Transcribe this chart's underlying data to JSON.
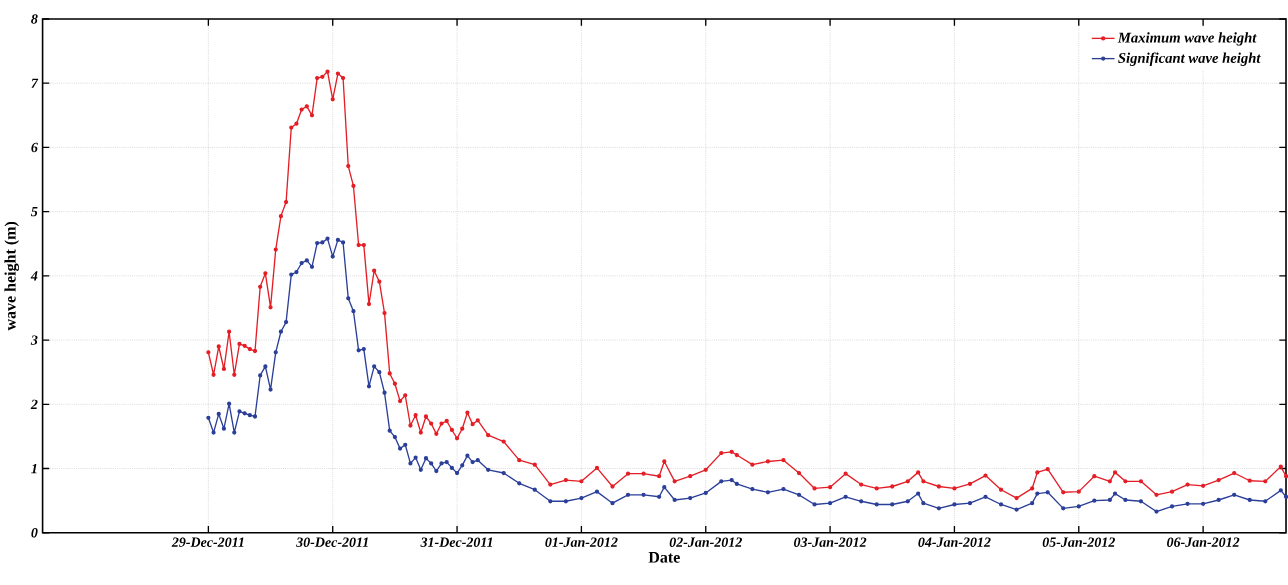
{
  "chart_data": {
    "type": "line",
    "xlabel": "Date",
    "ylabel": "wave height (m)",
    "x": [
      "2011-12-29T00:00",
      "2011-12-29T01:00",
      "2011-12-29T02:00",
      "2011-12-29T03:00",
      "2011-12-29T04:00",
      "2011-12-29T05:00",
      "2011-12-29T06:00",
      "2011-12-29T07:00",
      "2011-12-29T08:00",
      "2011-12-29T09:00",
      "2011-12-29T10:00",
      "2011-12-29T11:00",
      "2011-12-29T12:00",
      "2011-12-29T13:00",
      "2011-12-29T14:00",
      "2011-12-29T15:00",
      "2011-12-29T16:00",
      "2011-12-29T17:00",
      "2011-12-29T18:00",
      "2011-12-29T19:00",
      "2011-12-29T20:00",
      "2011-12-29T21:00",
      "2011-12-29T22:00",
      "2011-12-29T23:00",
      "2011-12-30T00:00",
      "2011-12-30T01:00",
      "2011-12-30T02:00",
      "2011-12-30T03:00",
      "2011-12-30T04:00",
      "2011-12-30T05:00",
      "2011-12-30T06:00",
      "2011-12-30T07:00",
      "2011-12-30T08:00",
      "2011-12-30T09:00",
      "2011-12-30T10:00",
      "2011-12-30T11:00",
      "2011-12-30T12:00",
      "2011-12-30T13:00",
      "2011-12-30T14:00",
      "2011-12-30T15:00",
      "2011-12-30T16:00",
      "2011-12-30T17:00",
      "2011-12-30T18:00",
      "2011-12-30T19:00",
      "2011-12-30T20:00",
      "2011-12-30T21:00",
      "2011-12-30T22:00",
      "2011-12-30T23:00",
      "2011-12-31T00:00",
      "2011-12-31T01:00",
      "2011-12-31T02:00",
      "2011-12-31T03:00",
      "2011-12-31T04:00",
      "2011-12-31T06:00",
      "2011-12-31T09:00",
      "2011-12-31T12:00",
      "2011-12-31T15:00",
      "2011-12-31T18:00",
      "2011-12-31T21:00",
      "2012-01-01T00:00",
      "2012-01-01T03:00",
      "2012-01-01T06:00",
      "2012-01-01T09:00",
      "2012-01-01T12:00",
      "2012-01-01T15:00",
      "2012-01-01T16:00",
      "2012-01-01T18:00",
      "2012-01-01T21:00",
      "2012-01-02T00:00",
      "2012-01-02T03:00",
      "2012-01-02T05:00",
      "2012-01-02T06:00",
      "2012-01-02T09:00",
      "2012-01-02T12:00",
      "2012-01-02T15:00",
      "2012-01-02T18:00",
      "2012-01-02T21:00",
      "2012-01-03T00:00",
      "2012-01-03T03:00",
      "2012-01-03T06:00",
      "2012-01-03T09:00",
      "2012-01-03T12:00",
      "2012-01-03T15:00",
      "2012-01-03T17:00",
      "2012-01-03T18:00",
      "2012-01-03T21:00",
      "2012-01-04T00:00",
      "2012-01-04T03:00",
      "2012-01-04T06:00",
      "2012-01-04T09:00",
      "2012-01-04T12:00",
      "2012-01-04T15:00",
      "2012-01-04T16:00",
      "2012-01-04T18:00",
      "2012-01-04T21:00",
      "2012-01-05T00:00",
      "2012-01-05T03:00",
      "2012-01-05T06:00",
      "2012-01-05T07:00",
      "2012-01-05T09:00",
      "2012-01-05T12:00",
      "2012-01-05T15:00",
      "2012-01-05T18:00",
      "2012-01-05T21:00",
      "2012-01-06T00:00",
      "2012-01-06T03:00",
      "2012-01-06T06:00",
      "2012-01-06T09:00",
      "2012-01-06T12:00",
      "2012-01-06T15:00",
      "2012-01-06T16:00"
    ],
    "series": [
      {
        "name": "Maximum wave height",
        "color": "#e41e26",
        "values": [
          2.81,
          2.46,
          2.9,
          2.55,
          3.13,
          2.46,
          2.94,
          2.91,
          2.86,
          2.83,
          3.83,
          4.04,
          3.51,
          4.41,
          4.93,
          5.15,
          6.31,
          6.37,
          6.59,
          6.64,
          6.5,
          7.08,
          7.1,
          7.18,
          6.75,
          7.15,
          7.08,
          5.71,
          5.4,
          4.48,
          4.48,
          3.56,
          4.08,
          3.91,
          3.42,
          2.48,
          2.32,
          2.05,
          2.14,
          1.67,
          1.83,
          1.56,
          1.81,
          1.7,
          1.54,
          1.7,
          1.74,
          1.6,
          1.47,
          1.62,
          1.87,
          1.69,
          1.75,
          1.52,
          1.42,
          1.13,
          1.06,
          0.75,
          0.82,
          0.8,
          1.01,
          0.72,
          0.92,
          0.92,
          0.88,
          1.11,
          0.8,
          0.88,
          0.98,
          1.24,
          1.26,
          1.21,
          1.06,
          1.11,
          1.13,
          0.93,
          0.69,
          0.71,
          0.92,
          0.75,
          0.69,
          0.72,
          0.8,
          0.94,
          0.8,
          0.72,
          0.69,
          0.76,
          0.89,
          0.67,
          0.54,
          0.69,
          0.94,
          0.99,
          0.63,
          0.64,
          0.88,
          0.8,
          0.94,
          0.8,
          0.8,
          0.59,
          0.64,
          0.75,
          0.73,
          0.82,
          0.93,
          0.81,
          0.8,
          1.03,
          0.88
        ]
      },
      {
        "name": "Significant wave height",
        "color": "#2b3f99",
        "values": [
          1.79,
          1.56,
          1.85,
          1.62,
          2.01,
          1.56,
          1.89,
          1.86,
          1.83,
          1.81,
          2.45,
          2.59,
          2.23,
          2.81,
          3.13,
          3.28,
          4.02,
          4.06,
          4.2,
          4.24,
          4.14,
          4.51,
          4.52,
          4.58,
          4.3,
          4.56,
          4.52,
          3.65,
          3.45,
          2.84,
          2.86,
          2.28,
          2.59,
          2.5,
          2.18,
          1.59,
          1.49,
          1.31,
          1.37,
          1.08,
          1.17,
          0.98,
          1.16,
          1.08,
          0.96,
          1.08,
          1.1,
          1.01,
          0.93,
          1.05,
          1.2,
          1.1,
          1.13,
          0.98,
          0.93,
          0.77,
          0.67,
          0.49,
          0.49,
          0.54,
          0.64,
          0.46,
          0.59,
          0.59,
          0.56,
          0.71,
          0.51,
          0.54,
          0.62,
          0.8,
          0.82,
          0.76,
          0.68,
          0.63,
          0.68,
          0.59,
          0.44,
          0.46,
          0.56,
          0.49,
          0.44,
          0.44,
          0.49,
          0.61,
          0.46,
          0.38,
          0.44,
          0.46,
          0.56,
          0.44,
          0.36,
          0.46,
          0.61,
          0.63,
          0.38,
          0.41,
          0.5,
          0.51,
          0.61,
          0.51,
          0.49,
          0.33,
          0.41,
          0.45,
          0.45,
          0.51,
          0.59,
          0.51,
          0.49,
          0.66,
          0.56
        ]
      }
    ],
    "xlim": [
      "2011-12-27T16:00",
      "2012-01-06T16:00"
    ],
    "xticks": [
      {
        "value": "2011-12-29",
        "label": "29-Dec-2011"
      },
      {
        "value": "2011-12-30",
        "label": "30-Dec-2011"
      },
      {
        "value": "2011-12-31",
        "label": "31-Dec-2011"
      },
      {
        "value": "2012-01-01",
        "label": "01-Jan-2012"
      },
      {
        "value": "2012-01-02",
        "label": "02-Jan-2012"
      },
      {
        "value": "2012-01-03",
        "label": "03-Jan-2012"
      },
      {
        "value": "2012-01-04",
        "label": "04-Jan-2012"
      },
      {
        "value": "2012-01-05",
        "label": "05-Jan-2012"
      },
      {
        "value": "2012-01-06",
        "label": "06-Jan-2012"
      }
    ],
    "ylim": [
      0,
      8
    ],
    "yticks": [
      0,
      1,
      2,
      3,
      4,
      5,
      6,
      7,
      8
    ],
    "grid": true,
    "legend": "top right",
    "marker": "circle",
    "line_style": "solid"
  }
}
